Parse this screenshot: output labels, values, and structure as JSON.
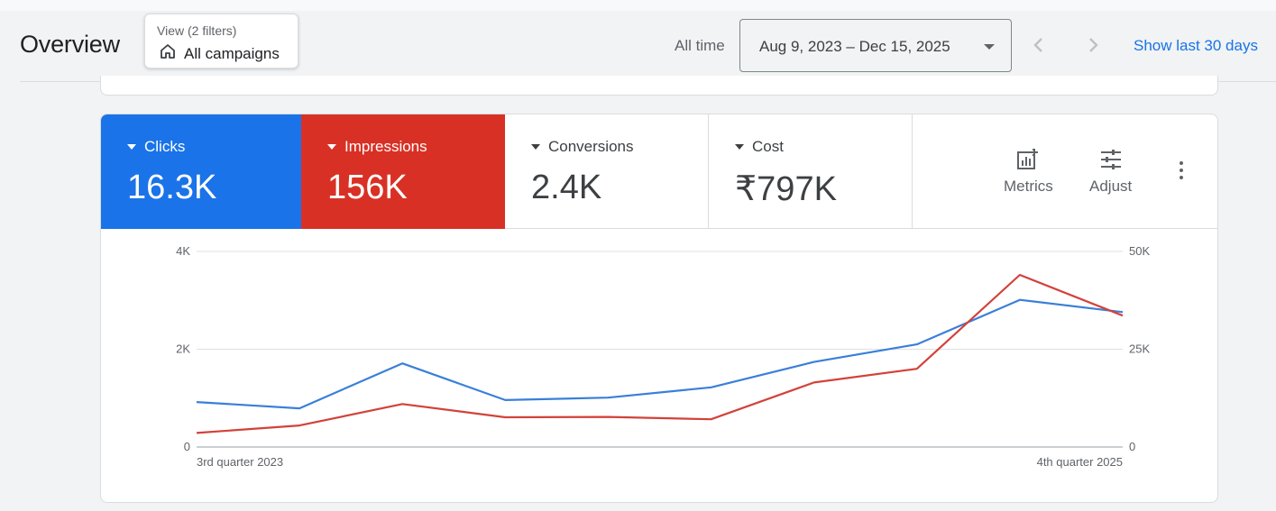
{
  "header": {
    "title": "Overview",
    "view_sub": "View (2 filters)",
    "view_main": "All campaigns",
    "all_time": "All time",
    "date_range": "Aug 9, 2023 – Dec 15, 2025",
    "show_last": "Show last 30 days"
  },
  "scorecards": [
    {
      "label": "Clicks",
      "value": "16.3K",
      "color": "#1a73e8"
    },
    {
      "label": "Impressions",
      "value": "156K",
      "color": "#d93025"
    },
    {
      "label": "Conversions",
      "value": "2.4K"
    },
    {
      "label": "Cost",
      "value": "₹797K"
    }
  ],
  "tools": {
    "metrics": "Metrics",
    "adjust": "Adjust"
  },
  "chart_data": {
    "type": "line",
    "x_start_label": "3rd quarter 2023",
    "x_end_label": "4th quarter 2025",
    "left_axis": {
      "ticks": [
        "0",
        "2K",
        "4K"
      ],
      "ylim": [
        0,
        4000
      ]
    },
    "right_axis": {
      "ticks": [
        "0",
        "25K",
        "50K"
      ],
      "ylim": [
        0,
        50000
      ]
    },
    "grid": true,
    "series": [
      {
        "name": "Clicks",
        "axis": "left",
        "color": "#3a7fd9",
        "values": [
          920,
          790,
          1710,
          960,
          1010,
          1220,
          1740,
          2100,
          3010,
          2760
        ]
      },
      {
        "name": "Impressions",
        "axis": "right",
        "color": "#d2423a",
        "values": [
          3600,
          5500,
          11000,
          7600,
          7700,
          7100,
          16500,
          20000,
          44000,
          33600
        ]
      }
    ]
  }
}
